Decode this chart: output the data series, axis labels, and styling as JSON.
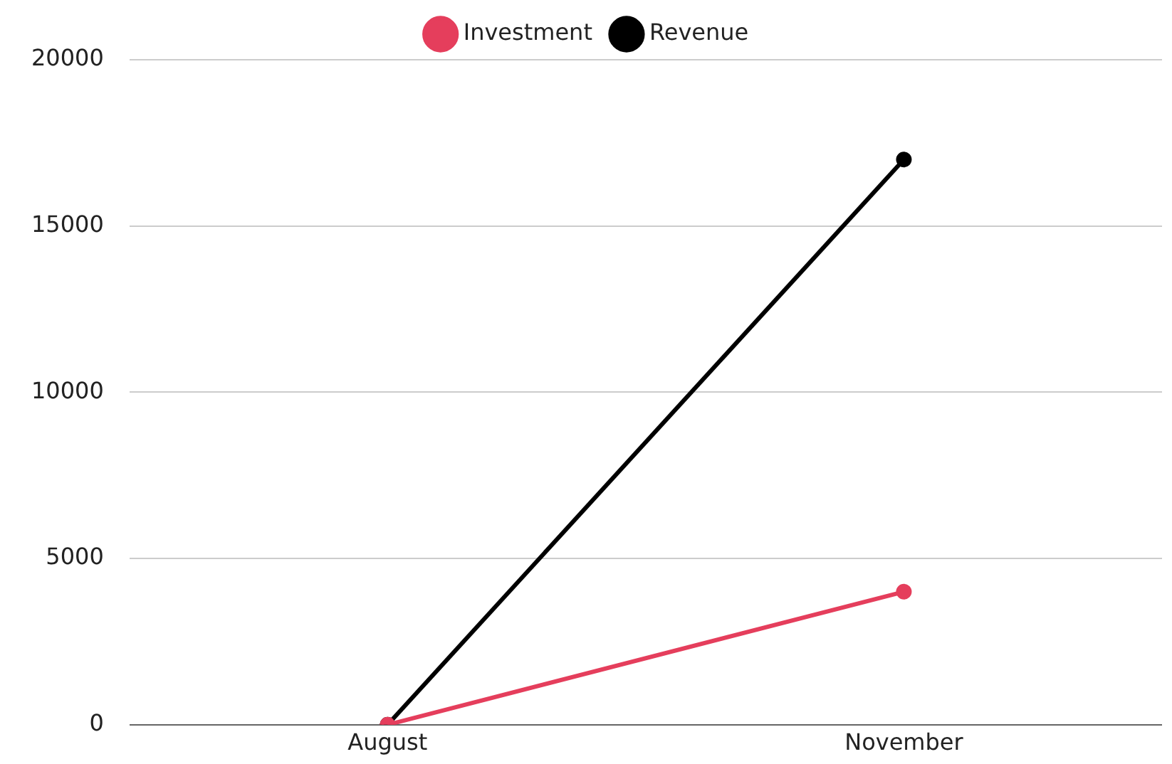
{
  "chart_data": {
    "type": "line",
    "categories": [
      "August",
      "November"
    ],
    "series": [
      {
        "name": "Investment",
        "color": "#e53e5c",
        "values": [
          0,
          4000
        ]
      },
      {
        "name": "Revenue",
        "color": "#000000",
        "values": [
          0,
          17000
        ]
      }
    ],
    "ylim": [
      0,
      20000
    ],
    "yticks": [
      0,
      5000,
      10000,
      15000,
      20000
    ],
    "grid": "y",
    "legend": "top",
    "marker": "circle",
    "line_style": "solid"
  }
}
